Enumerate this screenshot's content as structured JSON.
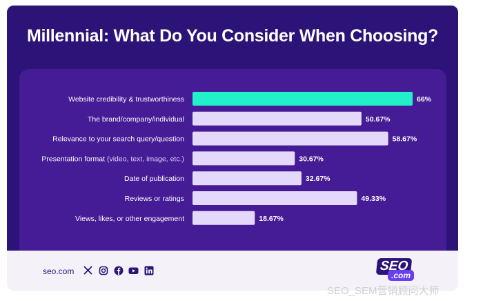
{
  "chart_data": {
    "type": "bar",
    "orientation": "horizontal",
    "title": "Millennial: What Do You Consider When Choosing?",
    "categories": [
      {
        "main": "Website credibility & trustworthiness",
        "paren": ""
      },
      {
        "main": "The brand/company/individual",
        "paren": ""
      },
      {
        "main": "Relevance to your search query/question",
        "paren": ""
      },
      {
        "main": "Presentation format",
        "paren": " (video, text, image, etc.)"
      },
      {
        "main": "Date of publication",
        "paren": ""
      },
      {
        "main": "Reviews or ratings",
        "paren": ""
      },
      {
        "main": "Views, likes, or other engagement",
        "paren": ""
      }
    ],
    "values": [
      66,
      50.67,
      58.67,
      30.67,
      32.67,
      49.33,
      18.67
    ],
    "value_labels": [
      "66%",
      "50.67%",
      "58.67%",
      "30.67%",
      "32.67%",
      "49.33%",
      "18.67%"
    ],
    "highlight_index": 0,
    "xlim": [
      0,
      66
    ],
    "colors": {
      "highlight": "#22f0c8",
      "bar": "#e5d9fb"
    }
  },
  "footer": {
    "site": "seo.com",
    "socials": [
      "x-icon",
      "instagram-icon",
      "facebook-icon",
      "youtube-icon",
      "linkedin-icon"
    ],
    "logo_top": "SEO",
    "logo_bottom": ".com"
  },
  "watermark": "SEO_SEM营销顾问大师",
  "colors": {
    "background": "#2c1377",
    "panel": "#451b96",
    "footer": "#f4f1f9"
  }
}
